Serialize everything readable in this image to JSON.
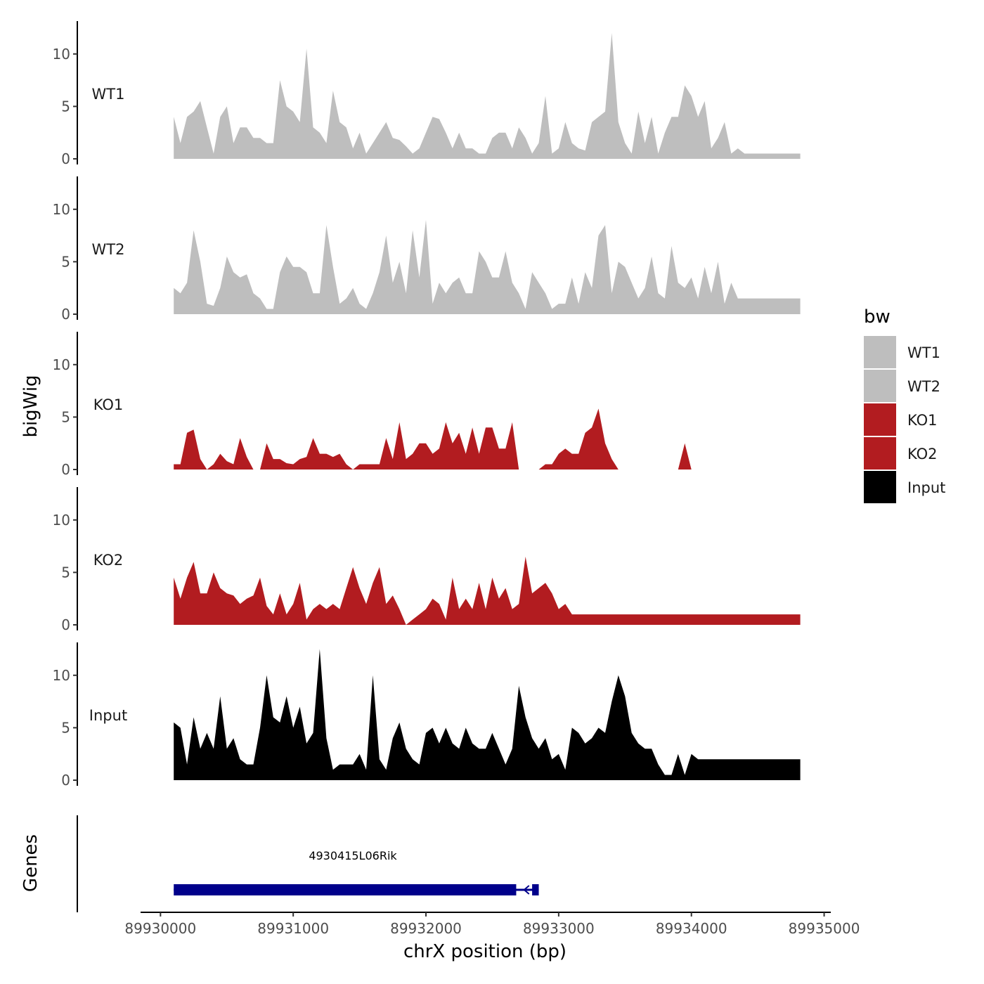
{
  "chart_data": {
    "type": "area",
    "x": [
      89930100,
      89930150,
      89930200,
      89930250,
      89930300,
      89930350,
      89930400,
      89930450,
      89930500,
      89930550,
      89930600,
      89930650,
      89930700,
      89930750,
      89930800,
      89930850,
      89930900,
      89930950,
      89931000,
      89931050,
      89931100,
      89931150,
      89931200,
      89931250,
      89931300,
      89931350,
      89931400,
      89931450,
      89931500,
      89931550,
      89931600,
      89931650,
      89931700,
      89931750,
      89931800,
      89931850,
      89931900,
      89931950,
      89932000,
      89932050,
      89932100,
      89932150,
      89932200,
      89932250,
      89932300,
      89932350,
      89932400,
      89932450,
      89932500,
      89932550,
      89932600,
      89932650,
      89932700,
      89932750,
      89932800,
      89932850,
      89932900,
      89932950,
      89933000,
      89933050,
      89933100,
      89933150,
      89933200,
      89933250,
      89933300,
      89933350,
      89933400,
      89933450,
      89933500,
      89933550,
      89933600,
      89933650,
      89933700,
      89933750,
      89933800,
      89933850,
      89933900,
      89933950,
      89934000,
      89934050,
      89934100,
      89934150,
      89934200,
      89934250,
      89934300,
      89934350,
      89934400,
      89934450,
      89934500,
      89934550,
      89934600,
      89934650,
      89934700,
      89934750,
      89934800,
      89934820
    ],
    "series": [
      {
        "name": "WT1",
        "color": "#bebebe",
        "values": [
          4,
          1.5,
          4,
          4.5,
          5.5,
          3,
          0.5,
          4,
          5,
          1.5,
          3,
          3,
          2,
          2,
          1.5,
          1.5,
          7.5,
          5,
          4.5,
          3.5,
          10.5,
          3,
          2.5,
          1.5,
          6.5,
          3.5,
          3,
          1,
          2.5,
          0.5,
          1.5,
          2.5,
          3.5,
          2,
          1.8,
          1.2,
          0.5,
          1,
          2.5,
          4,
          3.8,
          2.5,
          1,
          2.5,
          1,
          1,
          0.5,
          0.5,
          2,
          2.5,
          2.5,
          1,
          3,
          2,
          0.5,
          1.5,
          6,
          0.5,
          1,
          3.5,
          1.5,
          1,
          0.8,
          3.5,
          4,
          4.5,
          12,
          3.5,
          1.5,
          0.5,
          4.5,
          1.5,
          4,
          0.5,
          2.5,
          4,
          4,
          7,
          6,
          4,
          5.5,
          1,
          2,
          3.5,
          0.5,
          1,
          0.5,
          0.5,
          0.5,
          0.5,
          0.5,
          0.5,
          0.5,
          0.5,
          0.5,
          0.5
        ]
      },
      {
        "name": "WT2",
        "color": "#bebebe",
        "values": [
          2.5,
          2,
          3,
          8,
          5,
          1,
          0.8,
          2.5,
          5.5,
          4,
          3.5,
          3.8,
          2,
          1.5,
          0.5,
          0.5,
          4,
          5.5,
          4.5,
          4.5,
          4,
          2,
          2,
          8.5,
          4.5,
          1,
          1.5,
          2.5,
          1,
          0.5,
          2,
          4,
          7.5,
          3,
          5,
          2,
          8,
          3.5,
          9,
          1,
          3,
          2,
          3,
          3.5,
          2,
          2,
          6,
          5,
          3.5,
          3.5,
          6,
          3,
          2,
          0.5,
          4,
          3,
          2,
          0.5,
          1,
          1,
          3.5,
          1,
          4,
          2.5,
          7.5,
          8.5,
          2,
          5,
          4.5,
          3,
          1.5,
          2.5,
          5.5,
          2,
          1.5,
          6.5,
          3,
          2.5,
          3.5,
          1.5,
          4.5,
          2,
          5,
          1,
          3,
          1.5,
          1.5,
          1.5,
          1.5,
          1.5,
          1.5,
          1.5,
          1.5,
          1.5,
          1.5,
          1.5
        ]
      },
      {
        "name": "KO1",
        "color": "#b21c20",
        "values": [
          0.5,
          0.5,
          3.5,
          3.8,
          1,
          0,
          0.5,
          1.5,
          0.8,
          0.5,
          3,
          1.2,
          0,
          0,
          2.5,
          1,
          1,
          0.6,
          0.5,
          1,
          1.2,
          3,
          1.5,
          1.5,
          1.2,
          1.5,
          0.5,
          0,
          0.5,
          0.5,
          0.5,
          0.5,
          3,
          1,
          4.5,
          1,
          1.5,
          2.5,
          2.5,
          1.5,
          2,
          4.5,
          2.5,
          3.5,
          1.5,
          4,
          1.5,
          4,
          4,
          2,
          2,
          4.5,
          0,
          0,
          0,
          0,
          0.5,
          0.5,
          1.5,
          2,
          1.5,
          1.5,
          3.5,
          4,
          5.8,
          2.5,
          1,
          0,
          0,
          0,
          0,
          0,
          0,
          0,
          0,
          0,
          0,
          2.5,
          0,
          0,
          0,
          0,
          0,
          0,
          0,
          0,
          0,
          0,
          0,
          0,
          0,
          0,
          0,
          0,
          0,
          0
        ]
      },
      {
        "name": "KO2",
        "color": "#b21c20",
        "values": [
          4.5,
          2.5,
          4.5,
          6,
          3,
          3,
          5,
          3.5,
          3,
          2.8,
          2,
          2.5,
          2.8,
          4.5,
          1.8,
          1,
          3,
          1,
          2,
          4,
          0.5,
          1.5,
          2,
          1.5,
          2,
          1.5,
          3.5,
          5.5,
          3.5,
          2,
          4,
          5.5,
          2,
          2.8,
          1.5,
          0,
          0.5,
          1,
          1.5,
          2.5,
          2,
          0.5,
          4.5,
          1.5,
          2.5,
          1.5,
          4,
          1.5,
          4.5,
          2.5,
          3.5,
          1.5,
          2,
          6.5,
          3,
          3.5,
          4,
          3,
          1.5,
          2,
          1,
          1,
          1,
          1,
          1,
          1,
          1,
          1,
          1,
          1,
          1,
          1,
          1,
          1,
          1,
          1,
          1,
          1,
          1,
          1,
          1,
          1,
          1,
          1,
          1,
          1,
          1,
          1,
          1,
          1,
          1,
          1,
          1,
          1,
          1,
          1
        ]
      },
      {
        "name": "Input",
        "color": "#000000",
        "values": [
          5.5,
          5,
          1.5,
          6,
          3,
          4.5,
          3,
          8,
          3,
          4,
          2,
          1.5,
          1.5,
          5,
          10,
          6,
          5.5,
          8,
          5,
          7,
          3.5,
          4.5,
          12.5,
          4,
          1,
          1.5,
          1.5,
          1.5,
          2.5,
          1,
          10,
          2,
          1,
          4,
          5.5,
          3,
          2,
          1.5,
          4.5,
          5,
          3.5,
          5,
          3.5,
          3,
          5,
          3.5,
          3,
          3,
          4.5,
          3,
          1.5,
          3,
          9,
          6,
          4,
          3,
          4,
          2,
          2.5,
          1,
          5,
          4.5,
          3.5,
          4,
          5,
          4.5,
          7.5,
          10,
          8,
          4.5,
          3.5,
          3,
          3,
          1.5,
          0.5,
          0.5,
          2.5,
          0.5,
          2.5,
          2,
          2,
          2,
          2,
          2,
          2,
          2,
          2,
          2,
          2,
          2,
          2,
          2,
          2,
          2,
          2,
          2
        ]
      }
    ],
    "ylabel": "bigWig",
    "ylim": [
      0,
      13
    ],
    "yticks": [
      0,
      5,
      10
    ],
    "ytick_labels": [
      "0",
      "5",
      "10"
    ],
    "xlabel": "chrX position (bp)",
    "xlim": [
      89929850,
      89935050
    ],
    "xticks": [
      89930000,
      89931000,
      89932000,
      89933000,
      89934000,
      89935000
    ],
    "xtick_labels": [
      "89930000",
      "89931000",
      "89932000",
      "89933000",
      "89934000",
      "89935000"
    ],
    "legend": {
      "title": "bw",
      "position": "right",
      "entries": [
        "WT1",
        "WT2",
        "KO1",
        "KO2",
        "Input"
      ]
    },
    "genes_track": {
      "ylabel": "Genes",
      "gene": {
        "name": "4930415L06Rik",
        "start": 89930100,
        "end": 89932850,
        "strand": "-",
        "color": "#00008b",
        "exons": [
          [
            89930100,
            89932680
          ],
          [
            89932800,
            89932850
          ]
        ]
      }
    }
  }
}
